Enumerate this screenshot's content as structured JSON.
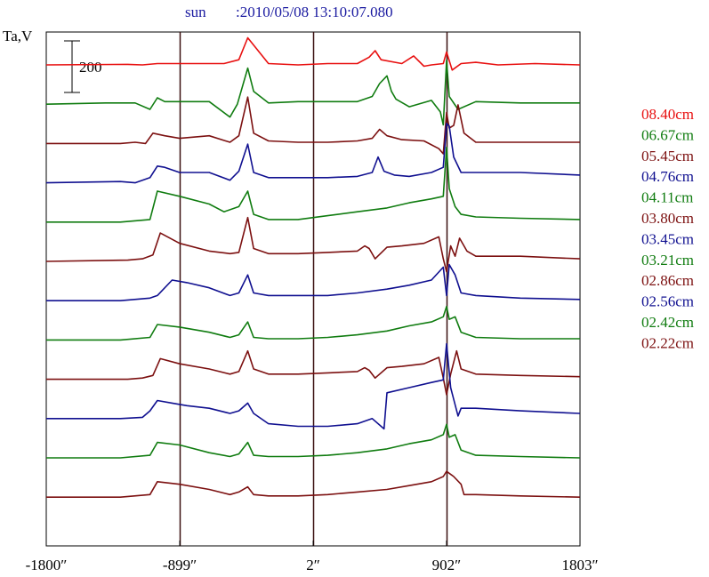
{
  "chart_data": {
    "type": "line",
    "title_source": "sun",
    "title_timestamp": ":2010/05/08 13:10:07.080",
    "ylabel": "Ta,V",
    "scale_bar_label": "200",
    "scale_bar_value": 200,
    "xlim": [
      -1800,
      1803
    ],
    "x_ticks": [
      {
        "value": -1800,
        "label": "-1800″"
      },
      {
        "value": -899,
        "label": "-899″"
      },
      {
        "value": 2,
        "label": "2″"
      },
      {
        "value": 902,
        "label": "902″"
      },
      {
        "value": 1803,
        "label": "1803″"
      }
    ],
    "vertical_lines": [
      -899,
      2,
      902
    ],
    "grid": false,
    "legend_placement": "right",
    "colors": {
      "red": "#e81010",
      "green": "#107c10",
      "maroon": "#7c1010",
      "navy": "#101090",
      "axis": "#000000",
      "title": "#1a1aa0"
    },
    "series": [
      {
        "name": "08.40cm",
        "color": "#e81010",
        "x": [
          -1800,
          -1250,
          -1150,
          -1050,
          -600,
          -500,
          -440,
          -300,
          -100,
          100,
          300,
          380,
          420,
          460,
          600,
          680,
          750,
          800,
          880,
          902,
          940,
          1000,
          1100,
          1250,
          1500,
          1803
        ],
        "y": [
          0,
          2,
          0,
          5,
          5,
          20,
          105,
          5,
          0,
          5,
          5,
          30,
          55,
          20,
          5,
          35,
          -5,
          0,
          5,
          50,
          -20,
          5,
          10,
          0,
          5,
          0
        ]
      },
      {
        "name": "06.67cm",
        "color": "#107c10",
        "x": [
          -1800,
          -1400,
          -1200,
          -1100,
          -1050,
          -1000,
          -900,
          -700,
          -560,
          -510,
          -440,
          -400,
          -300,
          -100,
          100,
          300,
          400,
          450,
          500,
          530,
          560,
          650,
          800,
          860,
          880,
          902,
          920,
          980,
          1100,
          1400,
          1803
        ],
        "y": [
          0,
          5,
          5,
          -20,
          25,
          10,
          10,
          10,
          -50,
          0,
          140,
          50,
          5,
          10,
          10,
          10,
          30,
          80,
          110,
          50,
          20,
          -10,
          15,
          -30,
          -80,
          170,
          30,
          -20,
          10,
          5,
          5
        ]
      },
      {
        "name": "05.45cm",
        "color": "#7c1010",
        "x": [
          -1800,
          -1300,
          -1200,
          -1130,
          -1080,
          -1000,
          -900,
          -700,
          -560,
          -500,
          -440,
          -400,
          -300,
          -100,
          100,
          300,
          400,
          450,
          500,
          600,
          750,
          850,
          880,
          902,
          920,
          950,
          980,
          1020,
          1100,
          1400,
          1803
        ],
        "y": [
          0,
          0,
          5,
          0,
          40,
          30,
          20,
          30,
          5,
          30,
          180,
          40,
          10,
          5,
          5,
          10,
          20,
          55,
          30,
          15,
          10,
          -20,
          -40,
          120,
          60,
          70,
          150,
          40,
          5,
          5,
          5
        ]
      },
      {
        "name": "04.76cm",
        "color": "#101090",
        "x": [
          -1800,
          -1300,
          -1200,
          -1100,
          -1050,
          -1000,
          -900,
          -700,
          -560,
          -500,
          -440,
          -400,
          -300,
          -100,
          100,
          300,
          400,
          440,
          480,
          550,
          650,
          800,
          880,
          902,
          920,
          950,
          1000,
          1100,
          1400,
          1803
        ],
        "y": [
          0,
          5,
          0,
          20,
          65,
          60,
          40,
          40,
          10,
          45,
          150,
          40,
          20,
          20,
          20,
          25,
          40,
          100,
          45,
          30,
          25,
          40,
          60,
          230,
          220,
          100,
          40,
          40,
          40,
          30
        ]
      },
      {
        "name": "04.11cm",
        "color": "#107c10",
        "x": [
          -1800,
          -1300,
          -1100,
          -1050,
          -900,
          -700,
          -600,
          -500,
          -440,
          -400,
          -300,
          -100,
          100,
          300,
          500,
          650,
          800,
          880,
          902,
          920,
          960,
          1000,
          1100,
          1400,
          1803
        ],
        "y": [
          0,
          0,
          10,
          120,
          100,
          70,
          40,
          60,
          120,
          30,
          10,
          10,
          25,
          40,
          55,
          75,
          90,
          100,
          290,
          130,
          60,
          30,
          20,
          15,
          10
        ]
      },
      {
        "name": "03.80cm",
        "color": "#7c1010",
        "x": [
          -1800,
          -1250,
          -1150,
          -1080,
          -1030,
          -900,
          -700,
          -560,
          -500,
          -440,
          -400,
          -300,
          -100,
          100,
          300,
          350,
          380,
          420,
          500,
          600,
          750,
          850,
          880,
          902,
          930,
          960,
          990,
          1040,
          1100,
          1400,
          1803
        ],
        "y": [
          0,
          5,
          10,
          25,
          110,
          70,
          40,
          30,
          35,
          170,
          50,
          30,
          30,
          35,
          40,
          60,
          50,
          10,
          55,
          60,
          70,
          95,
          10,
          -40,
          60,
          20,
          90,
          40,
          20,
          20,
          10
        ]
      },
      {
        "name": "03.45cm",
        "color": "#101090",
        "x": [
          -1800,
          -1300,
          -1100,
          -1050,
          -950,
          -850,
          -700,
          -560,
          -500,
          -440,
          -400,
          -300,
          -100,
          100,
          300,
          500,
          650,
          800,
          880,
          902,
          920,
          960,
          1000,
          1100,
          1400,
          1803
        ],
        "y": [
          0,
          0,
          10,
          20,
          80,
          70,
          50,
          20,
          30,
          100,
          30,
          20,
          20,
          20,
          30,
          45,
          60,
          80,
          130,
          20,
          140,
          100,
          30,
          20,
          10,
          5
        ]
      },
      {
        "name": "03.21cm",
        "color": "#107c10",
        "x": [
          -1800,
          -1300,
          -1100,
          -1050,
          -900,
          -700,
          -560,
          -500,
          -440,
          -400,
          -300,
          -100,
          100,
          300,
          500,
          650,
          800,
          880,
          902,
          920,
          960,
          1000,
          1100,
          1400,
          1803
        ],
        "y": [
          0,
          0,
          10,
          60,
          50,
          30,
          10,
          20,
          70,
          10,
          5,
          5,
          10,
          20,
          35,
          55,
          70,
          90,
          130,
          80,
          90,
          30,
          10,
          5,
          5
        ]
      },
      {
        "name": "02.86cm",
        "color": "#7c1010",
        "x": [
          -1800,
          -1250,
          -1150,
          -1080,
          -1030,
          -900,
          -700,
          -560,
          -500,
          -440,
          -400,
          -300,
          -100,
          100,
          300,
          350,
          380,
          420,
          500,
          600,
          750,
          850,
          880,
          902,
          930,
          970,
          1000,
          1050,
          1100,
          1400,
          1803
        ],
        "y": [
          0,
          0,
          5,
          15,
          80,
          60,
          40,
          20,
          30,
          110,
          40,
          20,
          20,
          25,
          30,
          45,
          35,
          5,
          45,
          50,
          60,
          85,
          5,
          -60,
          20,
          110,
          40,
          30,
          20,
          15,
          10
        ]
      },
      {
        "name": "02.56cm",
        "color": "#101090",
        "x": [
          -1800,
          -1300,
          -1150,
          -1100,
          -1050,
          -950,
          -850,
          -700,
          -560,
          -500,
          -440,
          -400,
          -300,
          -100,
          100,
          300,
          400,
          480,
          500,
          650,
          800,
          880,
          902,
          930,
          980,
          1000,
          1100,
          1400,
          1803
        ],
        "y": [
          0,
          0,
          5,
          30,
          70,
          60,
          50,
          40,
          20,
          30,
          60,
          20,
          -20,
          -30,
          -30,
          -20,
          0,
          -40,
          100,
          120,
          140,
          150,
          290,
          120,
          10,
          40,
          40,
          30,
          20
        ]
      },
      {
        "name": "02.42cm",
        "color": "#107c10",
        "x": [
          -1800,
          -1300,
          -1100,
          -1050,
          -900,
          -700,
          -560,
          -500,
          -440,
          -400,
          -300,
          -100,
          100,
          300,
          500,
          650,
          800,
          880,
          902,
          920,
          960,
          1000,
          1100,
          1400,
          1803
        ],
        "y": [
          0,
          0,
          10,
          60,
          50,
          20,
          5,
          15,
          60,
          10,
          5,
          5,
          10,
          20,
          35,
          55,
          70,
          90,
          130,
          80,
          90,
          30,
          10,
          5,
          0
        ]
      },
      {
        "name": "02.22cm",
        "color": "#7c1010",
        "x": [
          -1800,
          -1300,
          -1100,
          -1050,
          -900,
          -700,
          -560,
          -500,
          -440,
          -400,
          -300,
          -100,
          100,
          300,
          500,
          650,
          800,
          880,
          902,
          950,
          1000,
          1020,
          1100,
          1400,
          1803
        ],
        "y": [
          0,
          0,
          10,
          60,
          50,
          30,
          10,
          20,
          40,
          10,
          5,
          5,
          10,
          20,
          30,
          45,
          60,
          80,
          100,
          80,
          50,
          10,
          10,
          5,
          0
        ]
      }
    ]
  }
}
